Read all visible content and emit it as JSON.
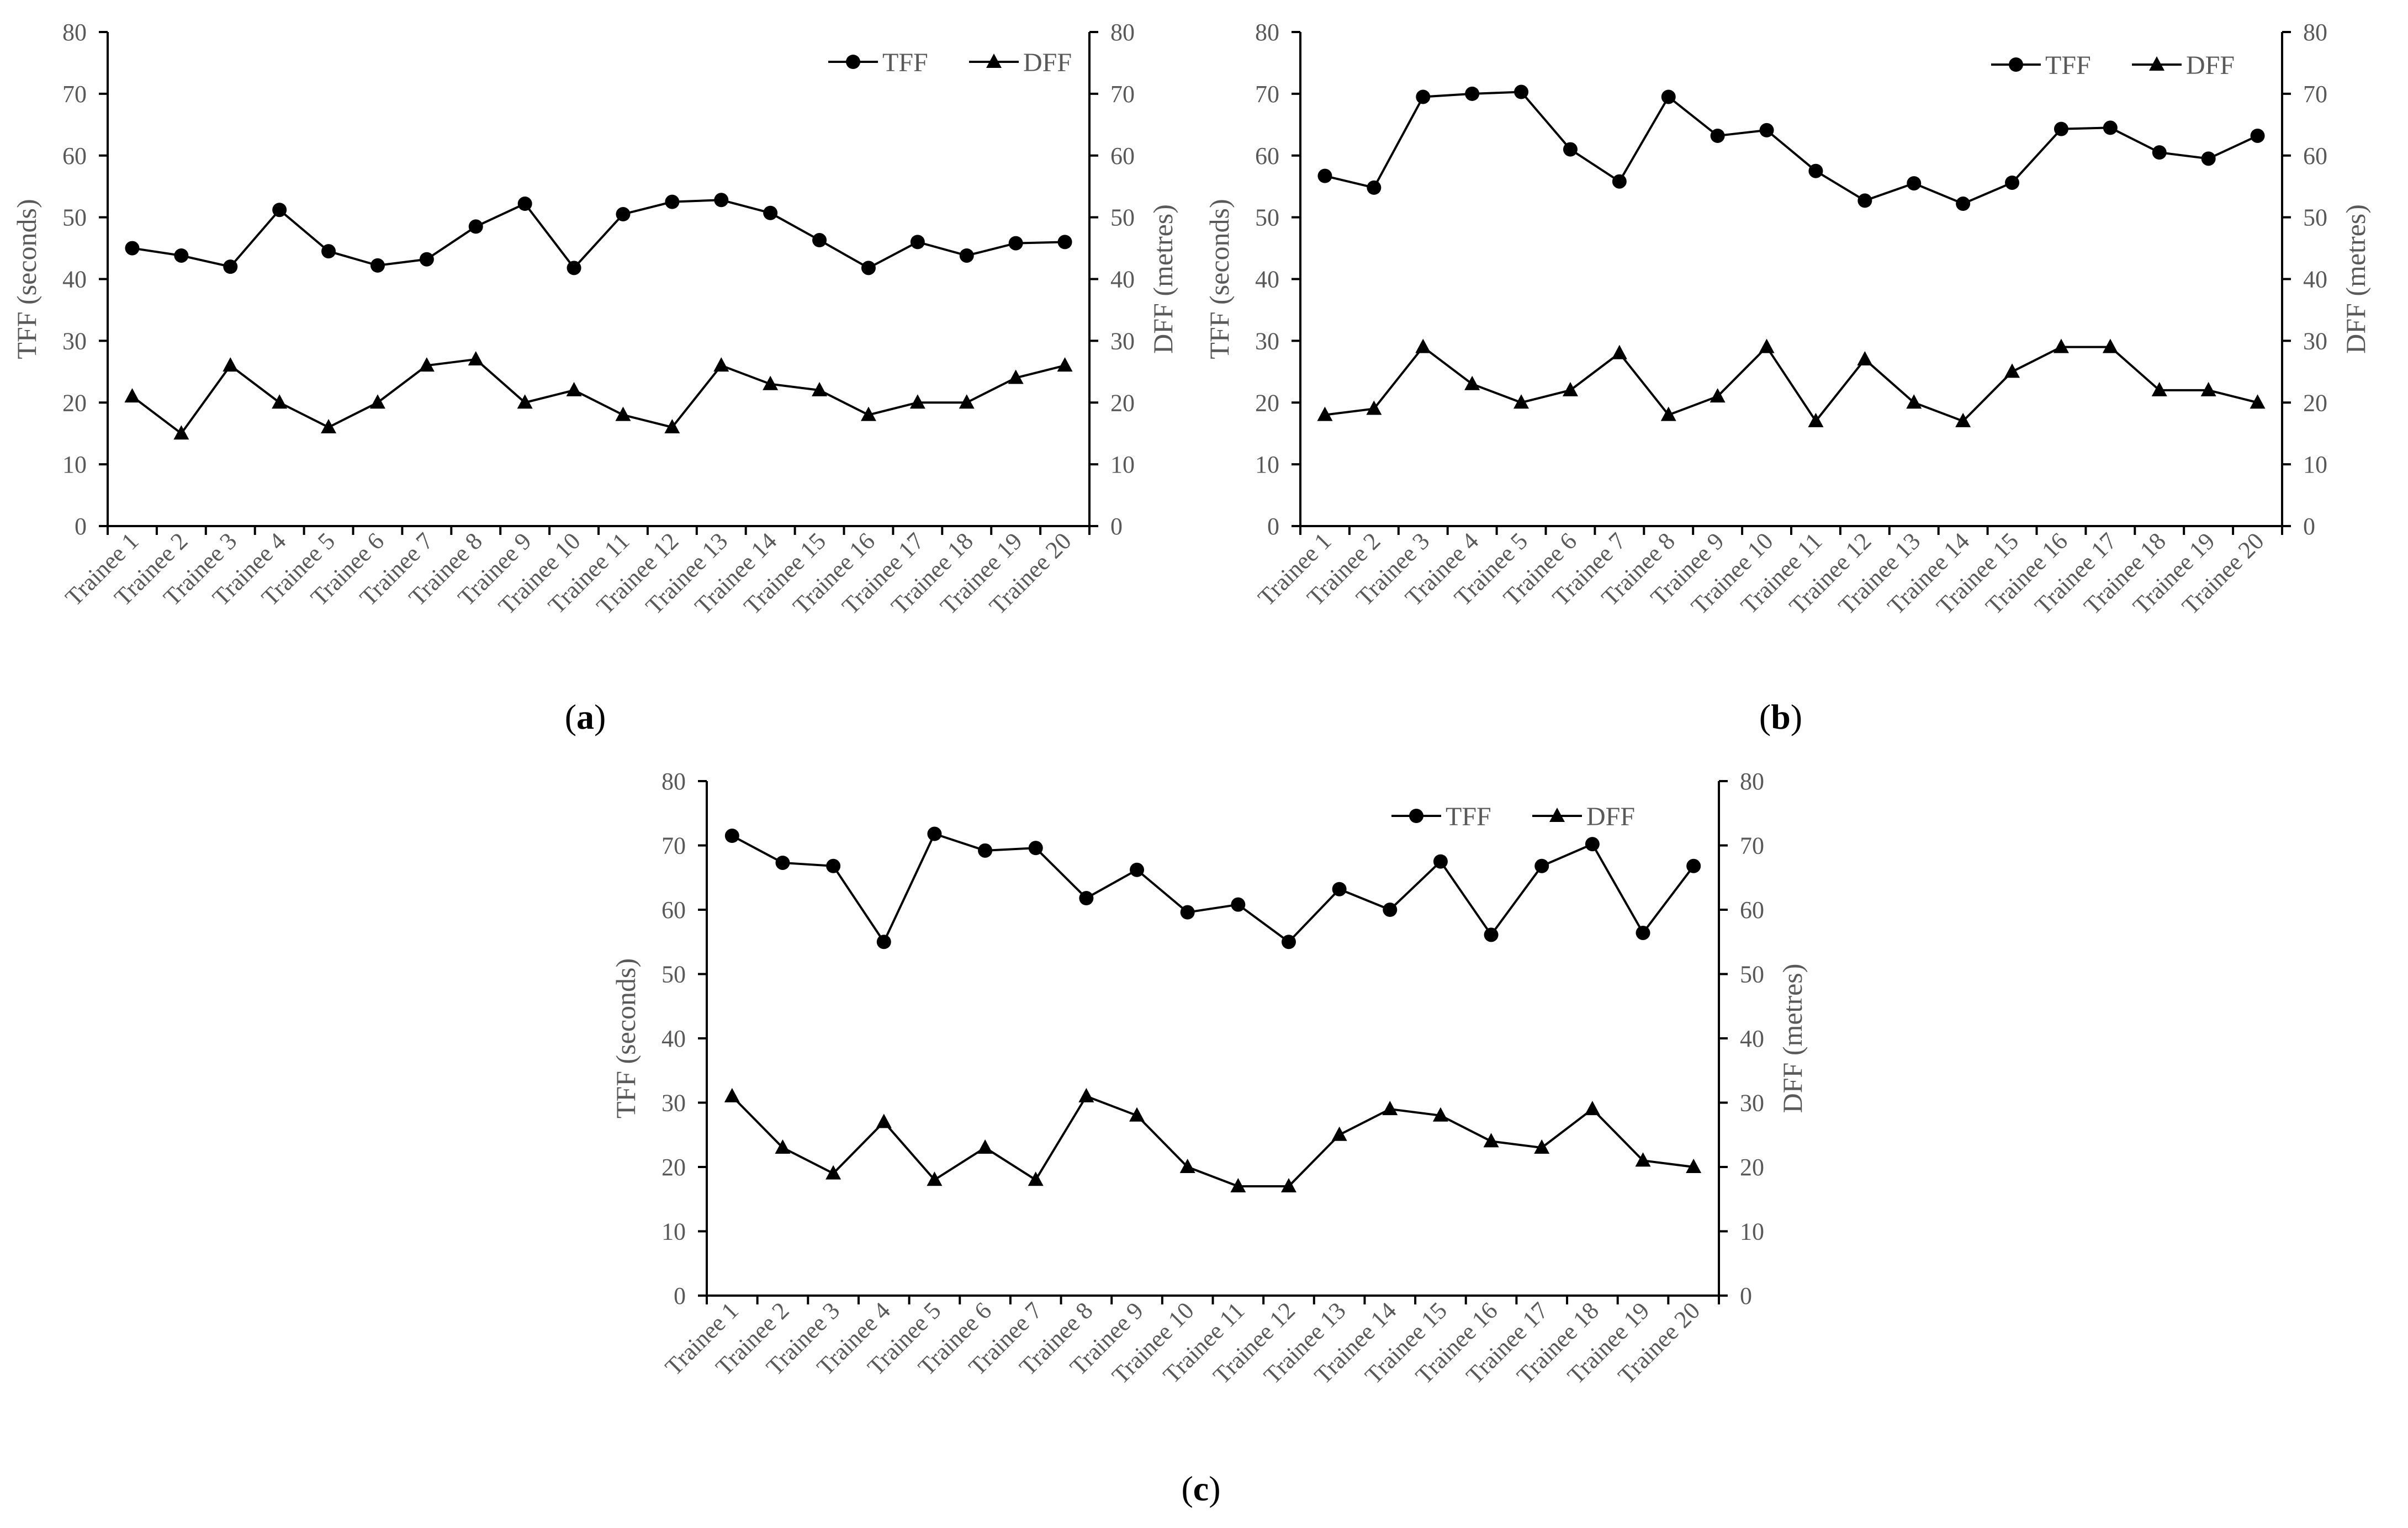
{
  "figure": {
    "colors": {
      "series": "#000000",
      "text": "#595959",
      "axis": "#000000"
    }
  },
  "chart_data": [
    {
      "type": "line",
      "panel_label": "a",
      "title": "",
      "xlabel": "",
      "ylabel": "TFF (seconds)",
      "y2label": "DFF (metres)",
      "ylim": [
        0,
        80
      ],
      "y2lim": [
        0,
        80
      ],
      "yticks": [
        "0",
        "10",
        "20",
        "30",
        "40",
        "50",
        "60",
        "70",
        "80"
      ],
      "grid": false,
      "legend_position": "top-right",
      "categories": [
        "Trainee 1",
        "Trainee 2",
        "Trainee 3",
        "Trainee 4",
        "Trainee 5",
        "Trainee 6",
        "Trainee 7",
        "Trainee 8",
        "Trainee 9",
        "Trainee 10",
        "Trainee 11",
        "Trainee 12",
        "Trainee 13",
        "Trainee 14",
        "Trainee 15",
        "Trainee 16",
        "Trainee 17",
        "Trainee 18",
        "Trainee 19",
        "Trainee 20"
      ],
      "series": [
        {
          "name": "TFF",
          "marker": "circle",
          "axis": "left",
          "values": [
            45,
            43.8,
            42,
            51.2,
            44.5,
            42.2,
            43.2,
            48.5,
            52.2,
            41.8,
            50.5,
            52.5,
            52.8,
            50.7,
            46.3,
            41.8,
            46,
            43.8,
            45.8,
            46
          ]
        },
        {
          "name": "DFF",
          "marker": "triangle",
          "axis": "right",
          "values": [
            21,
            15,
            26,
            20,
            16,
            20,
            26,
            27,
            20,
            22,
            18,
            16,
            26,
            23,
            22,
            18,
            20,
            20,
            24,
            26
          ]
        }
      ]
    },
    {
      "type": "line",
      "panel_label": "b",
      "title": "",
      "xlabel": "",
      "ylabel": "TFF (seconds)",
      "y2label": "DFF (metres)",
      "ylim": [
        0,
        80
      ],
      "y2lim": [
        0,
        80
      ],
      "yticks": [
        "0",
        "10",
        "20",
        "30",
        "40",
        "50",
        "60",
        "70",
        "80"
      ],
      "grid": false,
      "legend_position": "top-right",
      "categories": [
        "Trainee 1",
        "Trainee 2",
        "Trainee 3",
        "Trainee 4",
        "Trainee 5",
        "Trainee 6",
        "Trainee 7",
        "Trainee 8",
        "Trainee 9",
        "Trainee 10",
        "Trainee 11",
        "Trainee 12",
        "Trainee 13",
        "Trainee 14",
        "Trainee 15",
        "Trainee 16",
        "Trainee 17",
        "Trainee 18",
        "Trainee 19",
        "Trainee 20"
      ],
      "series": [
        {
          "name": "TFF",
          "marker": "circle",
          "axis": "left",
          "values": [
            56.7,
            54.8,
            69.5,
            70,
            70.3,
            61,
            55.8,
            69.5,
            63.2,
            64.1,
            57.5,
            52.7,
            55.5,
            52.2,
            55.6,
            64.3,
            64.5,
            60.5,
            59.5,
            63.2
          ]
        },
        {
          "name": "DFF",
          "marker": "triangle",
          "axis": "right",
          "values": [
            18,
            19,
            29,
            23,
            20,
            22,
            28,
            18,
            21,
            29,
            17,
            27,
            20,
            17,
            25,
            29,
            29,
            22,
            22,
            20
          ]
        }
      ]
    },
    {
      "type": "line",
      "panel_label": "c",
      "title": "",
      "xlabel": "",
      "ylabel": "TFF (seconds)",
      "y2label": "DFF (metres)",
      "ylim": [
        0,
        80
      ],
      "y2lim": [
        0,
        80
      ],
      "yticks": [
        "0",
        "10",
        "20",
        "30",
        "40",
        "50",
        "60",
        "70",
        "80"
      ],
      "grid": false,
      "legend_position": "top-right",
      "categories": [
        "Trainee 1",
        "Trainee 2",
        "Trainee 3",
        "Trainee 4",
        "Trainee 5",
        "Trainee 6",
        "Trainee 7",
        "Trainee 8",
        "Trainee 9",
        "Trainee 10",
        "Trainee 11",
        "Trainee 12",
        "Trainee 13",
        "Trainee 14",
        "Trainee 15",
        "Trainee 16",
        "Trainee 17",
        "Trainee 18",
        "Trainee 19",
        "Trainee 20"
      ],
      "series": [
        {
          "name": "TFF",
          "marker": "circle",
          "axis": "left",
          "values": [
            71.5,
            67.3,
            66.8,
            55,
            71.8,
            69.2,
            69.6,
            61.8,
            66.2,
            59.6,
            60.8,
            55,
            63.2,
            60,
            67.5,
            56.1,
            66.8,
            70.2,
            56.4,
            66.8
          ]
        },
        {
          "name": "DFF",
          "marker": "triangle",
          "axis": "right",
          "values": [
            31,
            23,
            19,
            27,
            18,
            23,
            18,
            31,
            28,
            20,
            17,
            17,
            25,
            29,
            28,
            24,
            23,
            29,
            21,
            20
          ]
        }
      ]
    }
  ]
}
